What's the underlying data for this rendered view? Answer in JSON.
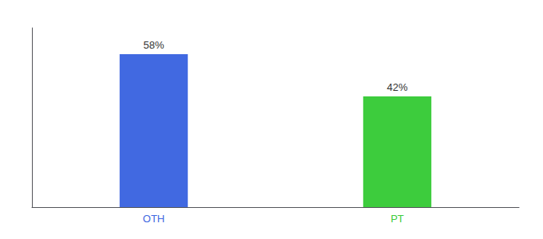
{
  "chart_data": {
    "type": "bar",
    "categories": [
      "OTH",
      "PT"
    ],
    "values": [
      58,
      42
    ],
    "value_labels": [
      "58%",
      "42%"
    ],
    "colors": [
      "#4169e1",
      "#3dcc3d"
    ],
    "ylim": [
      0,
      68
    ],
    "grid": false,
    "data_labels": true,
    "tick_labels": "x"
  }
}
